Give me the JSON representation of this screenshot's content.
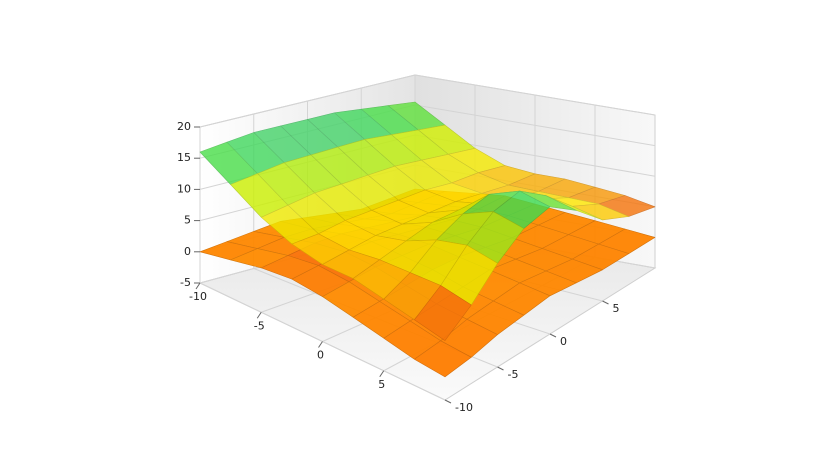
{
  "chart_data": {
    "type": "surface3d",
    "xlim": [
      -10,
      10
    ],
    "ylim": [
      -10,
      10
    ],
    "zlim": [
      -5,
      20
    ],
    "xticks": [
      -10,
      -5,
      0,
      5
    ],
    "yticks": [
      -10,
      -5,
      0,
      5
    ],
    "zticks": [
      -5,
      0,
      5,
      10,
      15,
      20
    ],
    "grid": true,
    "x": [
      -10,
      -7.5,
      -5,
      -2.5,
      0,
      2.5,
      5,
      7.5,
      10
    ],
    "y": [
      -10,
      -7.5,
      -5,
      -2.5,
      0,
      2.5,
      5,
      7.5,
      10
    ],
    "colorscale": [
      [
        -5,
        "#ff6a00"
      ],
      [
        2,
        "#ff8c00"
      ],
      [
        5,
        "#f03a10"
      ],
      [
        8,
        "#ffe800"
      ],
      [
        12,
        "#c8f000"
      ],
      [
        15,
        "#3ddc50"
      ],
      [
        18,
        "#6aa8e8"
      ]
    ],
    "surfaces": [
      {
        "z": [
          [
            0,
            0.5,
            1,
            1.5,
            1,
            0.5,
            0,
            0.5,
            1
          ],
          [
            1,
            1.5,
            2,
            2,
            1.5,
            1,
            0.5,
            1,
            1.5
          ],
          [
            2,
            2.5,
            3,
            3,
            2.5,
            2,
            1.5,
            1.5,
            2
          ],
          [
            2.5,
            3,
            3.5,
            3.5,
            3,
            2.5,
            2,
            2,
            2.5
          ],
          [
            2,
            2.5,
            3,
            3,
            3,
            2.5,
            2,
            2,
            2
          ],
          [
            1,
            1.5,
            2,
            2.5,
            2.5,
            2,
            1.5,
            1.5,
            1.5
          ],
          [
            0,
            0.5,
            1,
            1.5,
            2,
            1.5,
            1,
            1,
            1
          ],
          [
            -1,
            -0.5,
            0.5,
            1,
            1.5,
            1,
            0.5,
            0.5,
            0.5
          ],
          [
            -1.5,
            -1,
            0,
            0.5,
            1,
            0.5,
            0,
            0,
            0
          ]
        ]
      },
      {
        "z": [
          [
            16,
            16.5,
            17,
            17,
            17,
            17,
            16.5,
            16,
            15.5
          ],
          [
            13,
            13.5,
            14,
            14,
            14,
            14,
            13.5,
            13,
            12.5
          ],
          [
            10,
            10.5,
            11,
            11,
            11,
            11,
            10.5,
            10,
            9.5
          ],
          [
            8,
            8,
            8.5,
            8.5,
            8.5,
            8.5,
            8,
            8,
            7.5
          ],
          [
            7,
            7.5,
            8,
            8,
            8,
            8,
            7.5,
            7,
            7
          ],
          [
            7,
            8,
            9,
            10,
            10,
            9,
            8,
            7,
            7
          ],
          [
            6,
            8,
            11,
            13,
            14,
            12,
            9,
            7,
            6.5
          ],
          [
            5,
            8,
            12,
            15,
            16,
            13,
            9,
            7,
            6
          ],
          [
            4,
            7,
            11,
            14,
            15,
            12,
            8,
            6,
            5
          ]
        ]
      }
    ]
  }
}
